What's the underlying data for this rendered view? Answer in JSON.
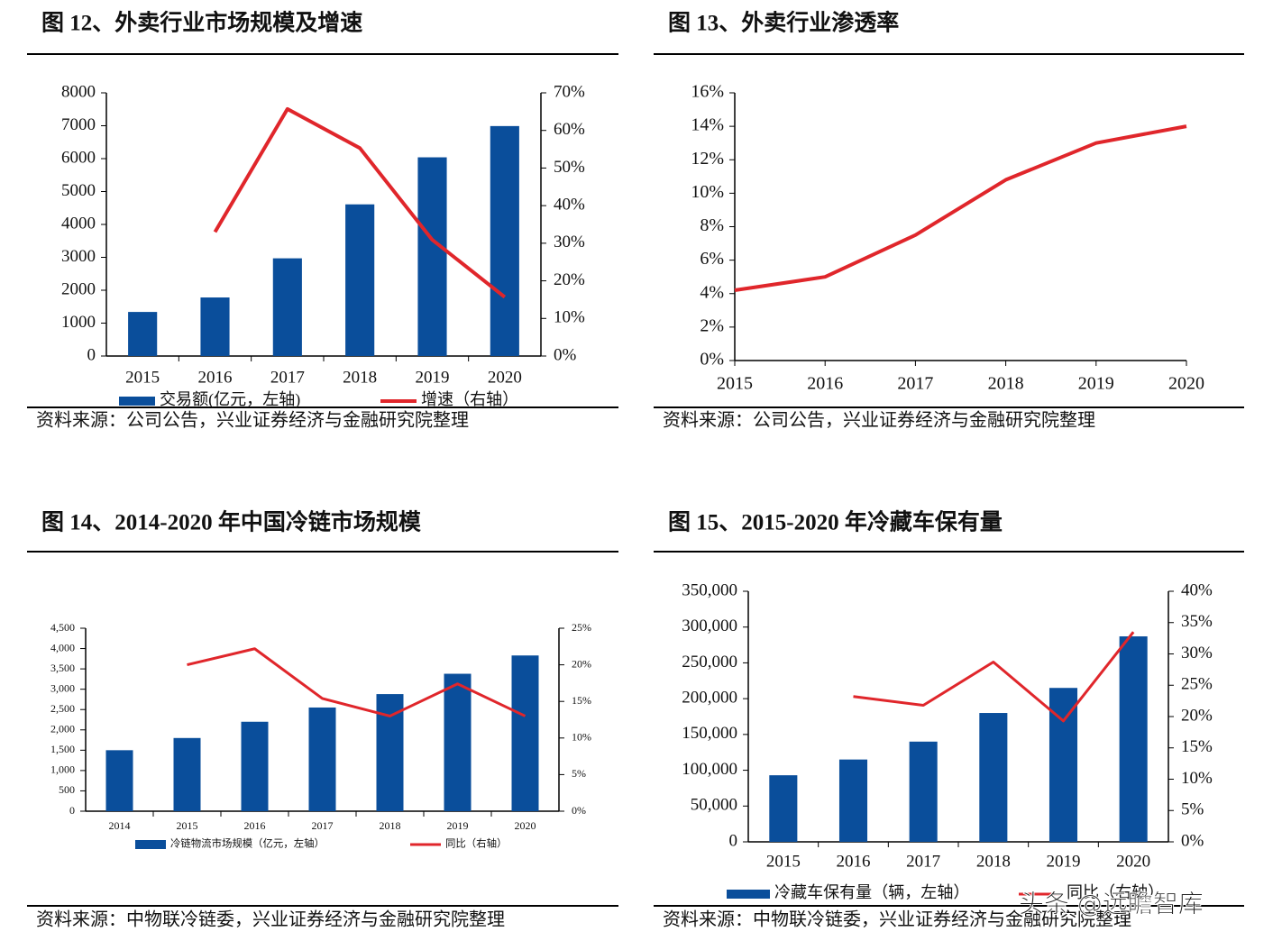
{
  "chart_data": [
    {
      "type": "combo",
      "title": "图 12、外卖行业市场规模及增速",
      "source": "资料来源：公司公告，兴业证券经济与金融研究院整理",
      "categories": [
        "2015",
        "2016",
        "2017",
        "2018",
        "2019",
        "2020"
      ],
      "series": [
        {
          "name": "交易额(亿元，左轴)",
          "type": "bar",
          "color": "#0a4e9b",
          "values": [
            1340,
            1780,
            2970,
            4610,
            6040,
            6990
          ]
        },
        {
          "name": "增速（右轴）",
          "type": "line",
          "axis": "y2",
          "color": "#e0262b",
          "values": [
            null,
            33,
            65.7,
            55.3,
            30.9,
            15.7
          ]
        }
      ],
      "ylim": [
        0,
        8000
      ],
      "yticks": [
        0,
        1000,
        2000,
        3000,
        4000,
        5000,
        6000,
        7000,
        8000
      ],
      "y2lim": [
        0,
        70
      ],
      "y2ticks": [
        {
          "value": 0,
          "label": "0%"
        },
        {
          "value": 10,
          "label": "10%"
        },
        {
          "value": 20,
          "label": "20%"
        },
        {
          "value": 30,
          "label": "30%"
        },
        {
          "value": 40,
          "label": "40%"
        },
        {
          "value": 50,
          "label": "50%"
        },
        {
          "value": 60,
          "label": "60%"
        },
        {
          "value": 70,
          "label": "70%"
        }
      ]
    },
    {
      "type": "line",
      "title": "图 13、外卖行业渗透率",
      "source": "资料来源：公司公告，兴业证券经济与金融研究院整理",
      "categories": [
        "2015",
        "2016",
        "2017",
        "2018",
        "2019",
        "2020"
      ],
      "series": [
        {
          "type": "line",
          "color": "#e0262b",
          "values": [
            4.2,
            5.0,
            7.5,
            10.8,
            13.0,
            14.0
          ]
        }
      ],
      "ylim": [
        0,
        16
      ],
      "yticks": [
        {
          "value": 0,
          "label": "0%"
        },
        {
          "value": 2,
          "label": "2%"
        },
        {
          "value": 4,
          "label": "4%"
        },
        {
          "value": 6,
          "label": "6%"
        },
        {
          "value": 8,
          "label": "8%"
        },
        {
          "value": 10,
          "label": "10%"
        },
        {
          "value": 12,
          "label": "12%"
        },
        {
          "value": 14,
          "label": "14%"
        },
        {
          "value": 16,
          "label": "16%"
        }
      ]
    },
    {
      "type": "combo",
      "title": "图 14、2014-2020 年中国冷链市场规模",
      "source": "资料来源：中物联冷链委，兴业证券经济与金融研究院整理",
      "categories": [
        "2014",
        "2015",
        "2016",
        "2017",
        "2018",
        "2019",
        "2020"
      ],
      "series": [
        {
          "name": "冷链物流市场规模（亿元，左轴）",
          "type": "bar",
          "color": "#0a4e9b",
          "values": [
            1500,
            1800,
            2200,
            2550,
            2880,
            3380,
            3830
          ]
        },
        {
          "name": "同比（右轴）",
          "type": "line",
          "axis": "y2",
          "color": "#e0262b",
          "values": [
            null,
            20.0,
            22.2,
            15.4,
            13.0,
            17.4,
            13.0
          ]
        }
      ],
      "ylim": [
        0,
        4500
      ],
      "yticks": [
        0,
        500,
        {
          "value": 1000,
          "label": "1,000"
        },
        {
          "value": 1500,
          "label": "1,500"
        },
        {
          "value": 2000,
          "label": "2,000"
        },
        {
          "value": 2500,
          "label": "2,500"
        },
        {
          "value": 3000,
          "label": "3,000"
        },
        {
          "value": 3500,
          "label": "3,500"
        },
        {
          "value": 4000,
          "label": "4,000"
        },
        {
          "value": 4500,
          "label": "4,500"
        }
      ],
      "y2lim": [
        0,
        25
      ],
      "y2ticks": [
        {
          "value": 0,
          "label": "0%"
        },
        {
          "value": 5,
          "label": "5%"
        },
        {
          "value": 10,
          "label": "10%"
        },
        {
          "value": 15,
          "label": "15%"
        },
        {
          "value": 20,
          "label": "20%"
        },
        {
          "value": 25,
          "label": "25%"
        }
      ]
    },
    {
      "type": "combo",
      "title": "图 15、2015-2020 年冷藏车保有量",
      "source": "资料来源：中物联冷链委，兴业证券经济与金融研究院整理",
      "categories": [
        "2015",
        "2016",
        "2017",
        "2018",
        "2019",
        "2020"
      ],
      "series": [
        {
          "name": "冷藏车保有量（辆，左轴）",
          "type": "bar",
          "color": "#0a4e9b",
          "values": [
            93000,
            115000,
            140000,
            180000,
            215000,
            287000
          ]
        },
        {
          "name": "同比（右轴）",
          "type": "line",
          "axis": "y2",
          "color": "#e0262b",
          "values": [
            null,
            23.2,
            21.8,
            28.7,
            19.3,
            33.5
          ]
        }
      ],
      "ylim": [
        0,
        350000
      ],
      "yticks": [
        0,
        {
          "value": 50000,
          "label": "50,000"
        },
        {
          "value": 100000,
          "label": "100,000"
        },
        {
          "value": 150000,
          "label": "150,000"
        },
        {
          "value": 200000,
          "label": "200,000"
        },
        {
          "value": 250000,
          "label": "250,000"
        },
        {
          "value": 300000,
          "label": "300,000"
        },
        {
          "value": 350000,
          "label": "350,000"
        }
      ],
      "y2lim": [
        0,
        40
      ],
      "y2ticks": [
        {
          "value": 0,
          "label": "0%"
        },
        {
          "value": 5,
          "label": "5%"
        },
        {
          "value": 10,
          "label": "10%"
        },
        {
          "value": 15,
          "label": "15%"
        },
        {
          "value": 20,
          "label": "20%"
        },
        {
          "value": 25,
          "label": "25%"
        },
        {
          "value": 30,
          "label": "30%"
        },
        {
          "value": 35,
          "label": "35%"
        },
        {
          "value": 40,
          "label": "40%"
        }
      ]
    }
  ],
  "watermark": "头条 @远瞻智库"
}
